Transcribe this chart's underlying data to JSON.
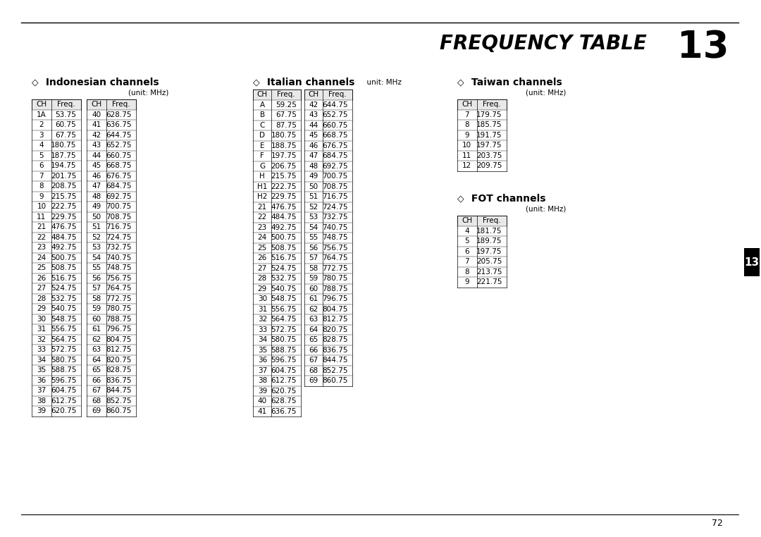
{
  "title": "FREQUENCY TABLE",
  "title_number": "13",
  "page_number": "72",
  "tab_number": "13",
  "background_color": "#ffffff",
  "section_indonesian": {
    "header": "Indonesian channels",
    "unit": "(unit: MHz)",
    "col1": {
      "headers": [
        "CH",
        "Freq."
      ],
      "rows": [
        [
          "1A",
          "53.75"
        ],
        [
          "2",
          "60.75"
        ],
        [
          "3",
          "67.75"
        ],
        [
          "4",
          "180.75"
        ],
        [
          "5",
          "187.75"
        ],
        [
          "6",
          "194.75"
        ],
        [
          "7",
          "201.75"
        ],
        [
          "8",
          "208.75"
        ],
        [
          "9",
          "215.75"
        ],
        [
          "10",
          "222.75"
        ],
        [
          "11",
          "229.75"
        ],
        [
          "21",
          "476.75"
        ],
        [
          "22",
          "484.75"
        ],
        [
          "23",
          "492.75"
        ],
        [
          "24",
          "500.75"
        ],
        [
          "25",
          "508.75"
        ],
        [
          "26",
          "516.75"
        ],
        [
          "27",
          "524.75"
        ],
        [
          "28",
          "532.75"
        ],
        [
          "29",
          "540.75"
        ],
        [
          "30",
          "548.75"
        ],
        [
          "31",
          "556.75"
        ],
        [
          "32",
          "564.75"
        ],
        [
          "33",
          "572.75"
        ],
        [
          "34",
          "580.75"
        ],
        [
          "35",
          "588.75"
        ],
        [
          "36",
          "596.75"
        ],
        [
          "37",
          "604.75"
        ],
        [
          "38",
          "612.75"
        ],
        [
          "39",
          "620.75"
        ]
      ]
    },
    "col2": {
      "headers": [
        "CH",
        "Freq."
      ],
      "rows": [
        [
          "40",
          "628.75"
        ],
        [
          "41",
          "636.75"
        ],
        [
          "42",
          "644.75"
        ],
        [
          "43",
          "652.75"
        ],
        [
          "44",
          "660.75"
        ],
        [
          "45",
          "668.75"
        ],
        [
          "46",
          "676.75"
        ],
        [
          "47",
          "684.75"
        ],
        [
          "48",
          "692.75"
        ],
        [
          "49",
          "700.75"
        ],
        [
          "50",
          "708.75"
        ],
        [
          "51",
          "716.75"
        ],
        [
          "52",
          "724.75"
        ],
        [
          "53",
          "732.75"
        ],
        [
          "54",
          "740.75"
        ],
        [
          "55",
          "748.75"
        ],
        [
          "56",
          "756.75"
        ],
        [
          "57",
          "764.75"
        ],
        [
          "58",
          "772.75"
        ],
        [
          "59",
          "780.75"
        ],
        [
          "60",
          "788.75"
        ],
        [
          "61",
          "796.75"
        ],
        [
          "62",
          "804.75"
        ],
        [
          "63",
          "812.75"
        ],
        [
          "64",
          "820.75"
        ],
        [
          "65",
          "828.75"
        ],
        [
          "66",
          "836.75"
        ],
        [
          "67",
          "844.75"
        ],
        [
          "68",
          "852.75"
        ],
        [
          "69",
          "860.75"
        ]
      ]
    }
  },
  "section_italian": {
    "header": "Italian channels",
    "unit": "unit: MHz",
    "col1": {
      "headers": [
        "CH",
        "Freq."
      ],
      "rows": [
        [
          "A",
          "59.25"
        ],
        [
          "B",
          "67.75"
        ],
        [
          "C",
          "87.75"
        ],
        [
          "D",
          "180.75"
        ],
        [
          "E",
          "188.75"
        ],
        [
          "F",
          "197.75"
        ],
        [
          "G",
          "206.75"
        ],
        [
          "H",
          "215.75"
        ],
        [
          "H1",
          "222.75"
        ],
        [
          "H2",
          "229.75"
        ],
        [
          "21",
          "476.75"
        ],
        [
          "22",
          "484.75"
        ],
        [
          "23",
          "492.75"
        ],
        [
          "24",
          "500.75"
        ],
        [
          "25",
          "508.75"
        ],
        [
          "26",
          "516.75"
        ],
        [
          "27",
          "524.75"
        ],
        [
          "28",
          "532.75"
        ],
        [
          "29",
          "540.75"
        ],
        [
          "30",
          "548.75"
        ],
        [
          "31",
          "556.75"
        ],
        [
          "32",
          "564.75"
        ],
        [
          "33",
          "572.75"
        ],
        [
          "34",
          "580.75"
        ],
        [
          "35",
          "588.75"
        ],
        [
          "36",
          "596.75"
        ],
        [
          "37",
          "604.75"
        ],
        [
          "38",
          "612.75"
        ],
        [
          "39",
          "620.75"
        ],
        [
          "40",
          "628.75"
        ],
        [
          "41",
          "636.75"
        ]
      ]
    },
    "col2": {
      "headers": [
        "CH",
        "Freq."
      ],
      "rows": [
        [
          "42",
          "644.75"
        ],
        [
          "43",
          "652.75"
        ],
        [
          "44",
          "660.75"
        ],
        [
          "45",
          "668.75"
        ],
        [
          "46",
          "676.75"
        ],
        [
          "47",
          "684.75"
        ],
        [
          "48",
          "692.75"
        ],
        [
          "49",
          "700.75"
        ],
        [
          "50",
          "708.75"
        ],
        [
          "51",
          "716.75"
        ],
        [
          "52",
          "724.75"
        ],
        [
          "53",
          "732.75"
        ],
        [
          "54",
          "740.75"
        ],
        [
          "55",
          "748.75"
        ],
        [
          "56",
          "756.75"
        ],
        [
          "57",
          "764.75"
        ],
        [
          "58",
          "772.75"
        ],
        [
          "59",
          "780.75"
        ],
        [
          "60",
          "788.75"
        ],
        [
          "61",
          "796.75"
        ],
        [
          "62",
          "804.75"
        ],
        [
          "63",
          "812.75"
        ],
        [
          "64",
          "820.75"
        ],
        [
          "65",
          "828.75"
        ],
        [
          "66",
          "836.75"
        ],
        [
          "67",
          "844.75"
        ],
        [
          "68",
          "852.75"
        ],
        [
          "69",
          "860.75"
        ]
      ]
    }
  },
  "section_taiwan": {
    "header": "Taiwan channels",
    "unit": "(unit: MHz)",
    "col1": {
      "headers": [
        "CH",
        "Freq."
      ],
      "rows": [
        [
          "7",
          "179.75"
        ],
        [
          "8",
          "185.75"
        ],
        [
          "9",
          "191.75"
        ],
        [
          "10",
          "197.75"
        ],
        [
          "11",
          "203.75"
        ],
        [
          "12",
          "209.75"
        ]
      ]
    }
  },
  "section_fot": {
    "header": "FOT channels",
    "unit": "(unit: MHz)",
    "col1": {
      "headers": [
        "CH",
        "Freq."
      ],
      "rows": [
        [
          "4",
          "181.75"
        ],
        [
          "5",
          "189.75"
        ],
        [
          "6",
          "197.75"
        ],
        [
          "7",
          "205.75"
        ],
        [
          "8",
          "213.75"
        ],
        [
          "9",
          "221.75"
        ]
      ]
    }
  }
}
